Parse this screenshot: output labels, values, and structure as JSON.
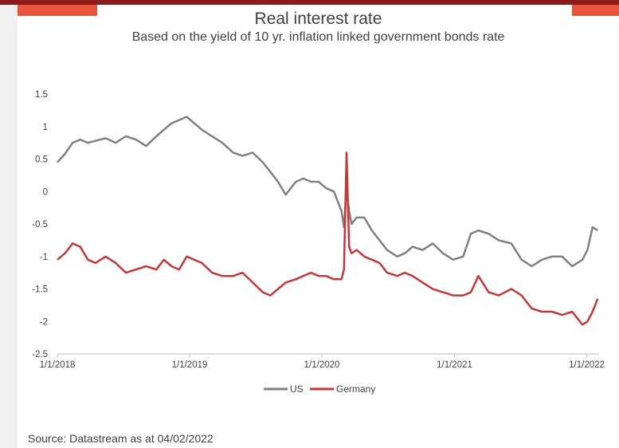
{
  "header": {
    "title": "Real interest rate",
    "subtitle": "Based on the yield of 10 yr. inflation linked government bonds rate"
  },
  "footer": {
    "source": "Source: Datastream as at 04/02/2022"
  },
  "colors": {
    "us": "#808080",
    "germany": "#c0393b",
    "top_bar": "#8c1c1c",
    "accent": "#e8553a"
  },
  "chart_data": {
    "type": "line",
    "title": "Real interest rate",
    "subtitle": "Based on the yield of 10 yr. inflation linked government bonds rate",
    "xlabel": "",
    "ylabel": "",
    "xlim": [
      "2018-01-01",
      "2022-02-04"
    ],
    "ylim": [
      -2.5,
      1.5
    ],
    "y_ticks": [
      "1.5",
      "1",
      "0.5",
      "0",
      "-0.5",
      "-1",
      "-1.5",
      "-2",
      "-2.5"
    ],
    "y_tick_values": [
      1.5,
      1,
      0.5,
      0,
      -0.5,
      -1,
      -1.5,
      -2,
      -2.5
    ],
    "x_ticks": [
      "1/1/2018",
      "1/1/2019",
      "1/1/2020",
      "1/1/2021",
      "1/1/2022"
    ],
    "x_tick_dates": [
      "2018-01-01",
      "2019-01-01",
      "2020-01-01",
      "2021-01-01",
      "2022-01-01"
    ],
    "grid": false,
    "legend": "bottom",
    "series": [
      {
        "name": "US",
        "x": [
          "2018-01-01",
          "2018-01-22",
          "2018-02-12",
          "2018-03-05",
          "2018-03-26",
          "2018-04-16",
          "2018-05-14",
          "2018-06-11",
          "2018-07-09",
          "2018-08-06",
          "2018-09-03",
          "2018-10-01",
          "2018-10-22",
          "2018-11-12",
          "2018-12-03",
          "2018-12-24",
          "2019-01-14",
          "2019-02-04",
          "2019-03-04",
          "2019-04-01",
          "2019-05-01",
          "2019-05-27",
          "2019-06-24",
          "2019-07-22",
          "2019-08-12",
          "2019-09-02",
          "2019-09-23",
          "2019-10-21",
          "2019-11-11",
          "2019-12-02",
          "2019-12-23",
          "2020-01-13",
          "2020-02-03",
          "2020-02-24",
          "2020-03-02",
          "2020-03-09",
          "2020-03-16",
          "2020-03-23",
          "2020-04-06",
          "2020-04-27",
          "2020-05-18",
          "2020-06-08",
          "2020-06-29",
          "2020-07-27",
          "2020-08-17",
          "2020-09-07",
          "2020-10-05",
          "2020-11-02",
          "2020-11-30",
          "2020-12-28",
          "2021-01-25",
          "2021-02-15",
          "2021-03-08",
          "2021-04-05",
          "2021-05-03",
          "2021-06-07",
          "2021-07-05",
          "2021-08-02",
          "2021-08-30",
          "2021-09-27",
          "2021-10-25",
          "2021-11-22",
          "2021-12-20",
          "2022-01-03",
          "2022-01-17",
          "2022-01-31"
        ],
        "values": [
          0.45,
          0.58,
          0.75,
          0.8,
          0.75,
          0.78,
          0.82,
          0.75,
          0.85,
          0.8,
          0.7,
          0.85,
          0.95,
          1.05,
          1.1,
          1.15,
          1.05,
          0.95,
          0.85,
          0.75,
          0.6,
          0.55,
          0.6,
          0.45,
          0.3,
          0.15,
          -0.05,
          0.15,
          0.2,
          0.15,
          0.15,
          0.05,
          0.0,
          -0.3,
          -0.55,
          0.05,
          -0.3,
          -0.5,
          -0.4,
          -0.4,
          -0.6,
          -0.75,
          -0.9,
          -1.0,
          -0.95,
          -0.85,
          -0.9,
          -0.8,
          -0.95,
          -1.05,
          -1.0,
          -0.65,
          -0.6,
          -0.65,
          -0.75,
          -0.8,
          -1.05,
          -1.15,
          -1.05,
          -1.0,
          -1.0,
          -1.15,
          -1.05,
          -0.9,
          -0.55,
          -0.6
        ]
      },
      {
        "name": "Germany",
        "x": [
          "2018-01-01",
          "2018-01-22",
          "2018-02-12",
          "2018-03-05",
          "2018-03-26",
          "2018-04-16",
          "2018-05-14",
          "2018-06-11",
          "2018-07-09",
          "2018-08-06",
          "2018-09-03",
          "2018-10-01",
          "2018-10-22",
          "2018-11-12",
          "2018-12-03",
          "2018-12-24",
          "2019-01-14",
          "2019-02-04",
          "2019-03-04",
          "2019-04-01",
          "2019-05-01",
          "2019-05-27",
          "2019-06-24",
          "2019-07-22",
          "2019-08-12",
          "2019-09-02",
          "2019-09-23",
          "2019-10-21",
          "2019-11-11",
          "2019-12-02",
          "2019-12-23",
          "2020-01-13",
          "2020-02-03",
          "2020-02-24",
          "2020-03-02",
          "2020-03-09",
          "2020-03-16",
          "2020-03-23",
          "2020-04-06",
          "2020-04-27",
          "2020-05-18",
          "2020-06-08",
          "2020-06-29",
          "2020-07-27",
          "2020-08-17",
          "2020-09-07",
          "2020-10-05",
          "2020-11-02",
          "2020-11-30",
          "2020-12-28",
          "2021-01-25",
          "2021-02-15",
          "2021-03-08",
          "2021-04-05",
          "2021-05-03",
          "2021-06-07",
          "2021-07-05",
          "2021-08-02",
          "2021-08-30",
          "2021-09-27",
          "2021-10-25",
          "2021-11-22",
          "2021-12-20",
          "2022-01-03",
          "2022-01-17",
          "2022-01-31"
        ],
        "values": [
          -1.05,
          -0.95,
          -0.8,
          -0.85,
          -1.05,
          -1.1,
          -1.0,
          -1.1,
          -1.25,
          -1.2,
          -1.15,
          -1.2,
          -1.05,
          -1.15,
          -1.2,
          -1.0,
          -1.05,
          -1.1,
          -1.25,
          -1.3,
          -1.3,
          -1.25,
          -1.4,
          -1.55,
          -1.6,
          -1.5,
          -1.4,
          -1.35,
          -1.3,
          -1.25,
          -1.3,
          -1.3,
          -1.35,
          -1.35,
          -1.2,
          0.6,
          -0.85,
          -0.95,
          -0.9,
          -1.0,
          -1.05,
          -1.1,
          -1.25,
          -1.3,
          -1.25,
          -1.3,
          -1.4,
          -1.5,
          -1.55,
          -1.6,
          -1.6,
          -1.55,
          -1.3,
          -1.55,
          -1.6,
          -1.5,
          -1.6,
          -1.8,
          -1.85,
          -1.85,
          -1.9,
          -1.85,
          -2.05,
          -2.0,
          -1.85,
          -1.65
        ]
      }
    ]
  }
}
